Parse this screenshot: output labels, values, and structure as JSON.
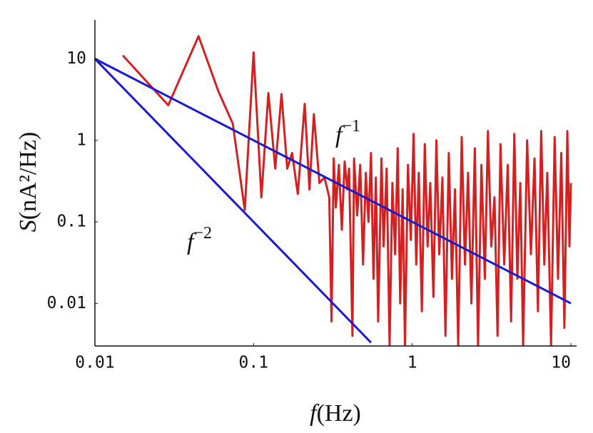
{
  "chart_data": {
    "type": "line",
    "x_label": {
      "symbol": "f",
      "unit": "(Hz)"
    },
    "y_label": {
      "symbol": "S",
      "unit": "(nA²/Hz)"
    },
    "log_x": true,
    "log_y": true,
    "grid": false,
    "xlim": [
      0.01,
      10
    ],
    "ylim": [
      0.003,
      30
    ],
    "xticks": [
      0.01,
      0.1,
      1,
      10
    ],
    "yticks": [
      0.01,
      0.1,
      1,
      10
    ],
    "annotations": [
      {
        "text": "f",
        "superscript": "−1"
      },
      {
        "text": "f",
        "superscript": "−2"
      }
    ],
    "series": [
      {
        "color": "#d42020",
        "x": [
          0.015,
          0.029,
          0.045,
          0.06,
          0.074,
          0.088,
          0.1,
          0.112,
          0.124,
          0.137,
          0.15,
          0.163,
          0.175,
          0.19,
          0.21,
          0.225,
          0.24,
          0.26,
          0.28,
          0.3,
          0.31,
          0.32,
          0.33,
          0.345,
          0.36,
          0.375,
          0.39,
          0.4,
          0.42,
          0.43,
          0.45,
          0.47,
          0.49,
          0.51,
          0.53,
          0.55,
          0.57,
          0.59,
          0.61,
          0.64,
          0.66,
          0.69,
          0.72,
          0.75,
          0.78,
          0.81,
          0.84,
          0.87,
          0.9,
          0.94,
          0.98,
          1.02,
          1.06,
          1.1,
          1.15,
          1.2,
          1.25,
          1.3,
          1.36,
          1.42,
          1.48,
          1.55,
          1.62,
          1.7,
          1.78,
          1.86,
          1.95,
          2.05,
          2.15,
          2.25,
          2.36,
          2.48,
          2.6,
          2.73,
          2.87,
          3.0,
          3.15,
          3.3,
          3.45,
          3.6,
          3.8,
          4.0,
          4.2,
          4.4,
          4.6,
          4.8,
          5.0,
          5.3,
          5.6,
          5.9,
          6.2,
          6.5,
          6.8,
          7.1,
          7.5,
          7.9,
          8.3,
          8.7,
          9.1,
          9.5,
          9.8,
          10
        ],
        "values": [
          11,
          2.7,
          19,
          4,
          1.6,
          0.14,
          12,
          0.2,
          3.8,
          0.45,
          3.7,
          0.45,
          0.7,
          0.22,
          2.8,
          0.25,
          2.1,
          0.3,
          0.35,
          0.2,
          0.006,
          0.6,
          0.15,
          0.5,
          0.08,
          0.55,
          0.25,
          0.45,
          0.004,
          0.6,
          0.12,
          0.5,
          0.03,
          0.4,
          0.1,
          0.7,
          0.02,
          0.35,
          0.006,
          0.6,
          0.05,
          0.45,
          0.003,
          0.3,
          0.04,
          0.8,
          0.01,
          0.25,
          0.003,
          0.5,
          0.06,
          1.2,
          0.03,
          0.4,
          0.008,
          0.9,
          0.05,
          0.3,
          0.012,
          1.0,
          0.04,
          0.35,
          0.004,
          0.7,
          0.02,
          0.25,
          0.003,
          1.1,
          0.03,
          0.4,
          0.01,
          0.8,
          0.003,
          0.5,
          0.02,
          1.3,
          0.05,
          0.2,
          0.004,
          0.9,
          0.03,
          0.5,
          0.006,
          1.2,
          0.02,
          0.3,
          0.003,
          1.0,
          0.04,
          0.6,
          0.008,
          1.3,
          0.03,
          0.4,
          0.003,
          1.1,
          0.02,
          0.7,
          0.005,
          1.3,
          0.05,
          0.3
        ]
      },
      {
        "color": "#1a1acc",
        "x": [
          0.01,
          10
        ],
        "values": [
          10,
          0.01
        ]
      },
      {
        "color": "#1a1acc",
        "x": [
          0.01,
          0.55
        ],
        "values": [
          10,
          0.0033
        ]
      }
    ]
  }
}
